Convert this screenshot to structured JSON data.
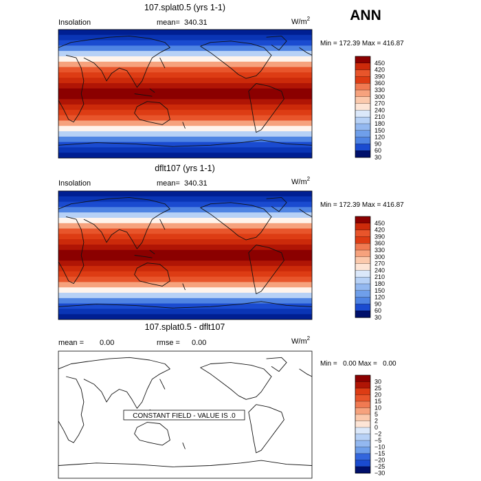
{
  "season": "ANN",
  "panels": [
    {
      "title": "107.splat0.5 (yrs 1-1)",
      "left_label": "Insolation",
      "mean_label": "mean=",
      "mean_value": "340.31",
      "units": "W/m",
      "units_exp": "2",
      "minmax": "Min = 172.39 Max = 416.87",
      "colorbar": [
        "450",
        "420",
        "390",
        "360",
        "330",
        "300",
        "270",
        "240",
        "210",
        "180",
        "150",
        "120",
        "90",
        "60",
        "30"
      ]
    },
    {
      "title": "dflt107 (yrs 1-1)",
      "left_label": "Insolation",
      "mean_label": "mean=",
      "mean_value": "340.31",
      "units": "W/m",
      "units_exp": "2",
      "minmax": "Min = 172.39 Max = 416.87",
      "colorbar": [
        "450",
        "420",
        "390",
        "360",
        "330",
        "300",
        "270",
        "240",
        "210",
        "180",
        "150",
        "120",
        "90",
        "60",
        "30"
      ]
    },
    {
      "title": "107.splat0.5 - dflt107",
      "mean_label": "mean =",
      "mean_value": "0.00",
      "rmse_label": "rmse =",
      "rmse_value": "0.00",
      "units": "W/m",
      "units_exp": "2",
      "minmax": "Min =   0.00 Max =   0.00",
      "constant_msg": "CONSTANT FIELD - VALUE IS .0",
      "colorbar": [
        "30",
        "25",
        "20",
        "15",
        "10",
        "5",
        "2",
        "0",
        "−2",
        "−5",
        "−10",
        "−15",
        "−20",
        "−25",
        "−30"
      ]
    }
  ],
  "chart_data": [
    {
      "type": "heatmap",
      "title": "107.splat0.5 (yrs 1-1)",
      "field": "Insolation",
      "units": "W/m2",
      "mean": 340.31,
      "min": 172.39,
      "max": 416.87,
      "levels": [
        30,
        60,
        90,
        120,
        150,
        180,
        210,
        240,
        270,
        300,
        330,
        360,
        390,
        420,
        450
      ],
      "latitude_band_values": [
        {
          "lat": 85,
          "value": 175
        },
        {
          "lat": 70,
          "value": 210
        },
        {
          "lat": 55,
          "value": 275
        },
        {
          "lat": 40,
          "value": 340
        },
        {
          "lat": 25,
          "value": 390
        },
        {
          "lat": 10,
          "value": 410
        },
        {
          "lat": 0,
          "value": 416
        },
        {
          "lat": -10,
          "value": 410
        },
        {
          "lat": -25,
          "value": 390
        },
        {
          "lat": -40,
          "value": 340
        },
        {
          "lat": -55,
          "value": 275
        },
        {
          "lat": -70,
          "value": 210
        },
        {
          "lat": -85,
          "value": 175
        }
      ]
    },
    {
      "type": "heatmap",
      "title": "dflt107 (yrs 1-1)",
      "field": "Insolation",
      "units": "W/m2",
      "mean": 340.31,
      "min": 172.39,
      "max": 416.87,
      "levels": [
        30,
        60,
        90,
        120,
        150,
        180,
        210,
        240,
        270,
        300,
        330,
        360,
        390,
        420,
        450
      ],
      "latitude_band_values": [
        {
          "lat": 85,
          "value": 175
        },
        {
          "lat": 70,
          "value": 210
        },
        {
          "lat": 55,
          "value": 275
        },
        {
          "lat": 40,
          "value": 340
        },
        {
          "lat": 25,
          "value": 390
        },
        {
          "lat": 10,
          "value": 410
        },
        {
          "lat": 0,
          "value": 416
        },
        {
          "lat": -10,
          "value": 410
        },
        {
          "lat": -25,
          "value": 390
        },
        {
          "lat": -40,
          "value": 340
        },
        {
          "lat": -55,
          "value": 275
        },
        {
          "lat": -70,
          "value": 210
        },
        {
          "lat": -85,
          "value": 175
        }
      ]
    },
    {
      "type": "heatmap",
      "title": "107.splat0.5 - dflt107",
      "units": "W/m2",
      "mean": 0.0,
      "rmse": 0.0,
      "min": 0.0,
      "max": 0.0,
      "levels": [
        -30,
        -25,
        -20,
        -15,
        -10,
        -5,
        -2,
        0,
        2,
        5,
        10,
        15,
        20,
        25,
        30
      ],
      "constant_value": 0.0
    }
  ],
  "colors": {
    "full_scale": [
      "#8b0000",
      "#b01505",
      "#cc2a0a",
      "#dd3c14",
      "#e8552b",
      "#f07a52",
      "#f6a27d",
      "#fbc9ac",
      "#fde5d6",
      "#fff4ec",
      "#dbe8fa",
      "#b7d1f6",
      "#93b8f0",
      "#6f9fea",
      "#4f84e3",
      "#3366dd",
      "#1a4bd0",
      "#0a35b5",
      "#001f92",
      "#00106b"
    ],
    "top_bins": [
      "#8b0000",
      "#cc2a0a",
      "#e8552b",
      "#dd3c14",
      "#f07a52",
      "#f6a27d",
      "#fbc9ac",
      "#fde5d6",
      "#dbe8fa",
      "#b7d1f6",
      "#93b8f0",
      "#6f9fea",
      "#4f84e3",
      "#1a4bd0",
      "#00106b"
    ],
    "diff_bins": [
      "#8b0000",
      "#b01505",
      "#dd3c14",
      "#e8552b",
      "#f07a52",
      "#f6a27d",
      "#fbc9ac",
      "#fde5d6",
      "#dbe8fa",
      "#b7d1f6",
      "#93b8f0",
      "#6f9fea",
      "#3366dd",
      "#1a4bd0",
      "#00106b"
    ]
  }
}
